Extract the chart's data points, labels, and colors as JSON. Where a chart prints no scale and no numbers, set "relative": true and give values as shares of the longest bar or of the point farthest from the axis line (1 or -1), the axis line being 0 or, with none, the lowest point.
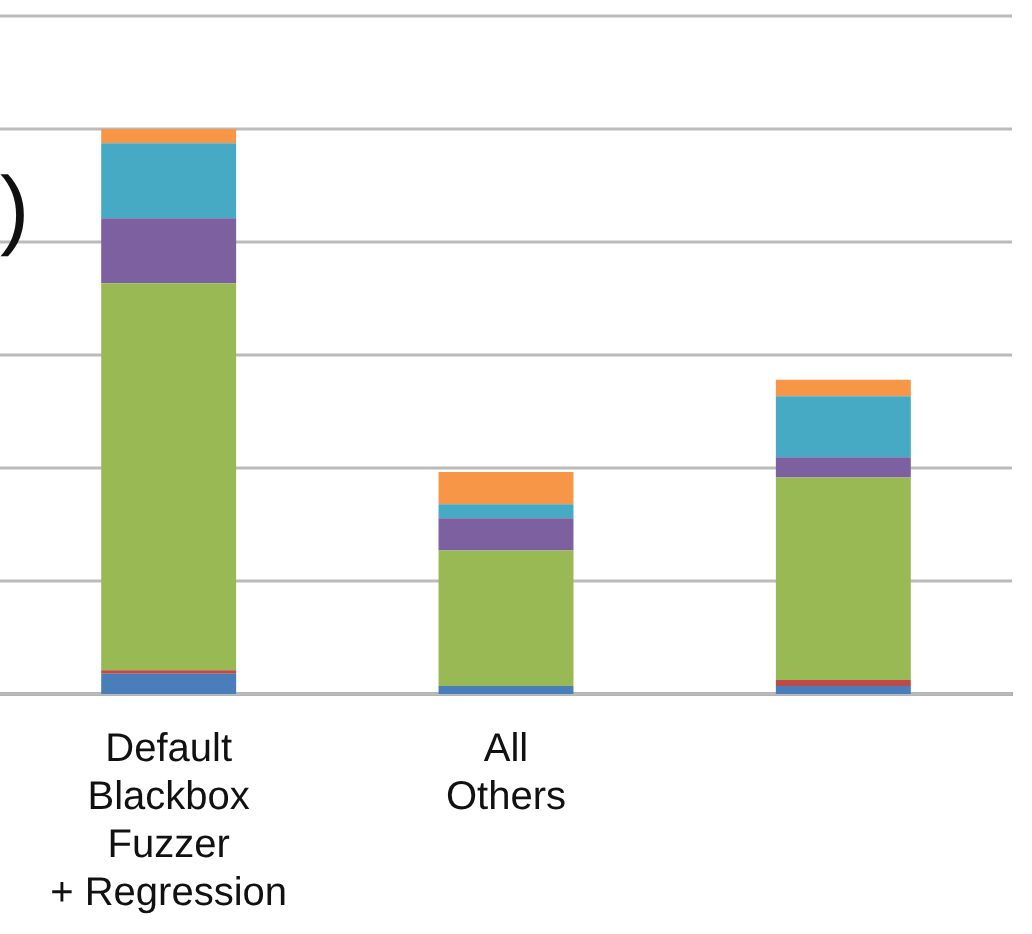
{
  "chart_data": {
    "type": "bar",
    "stacked": true,
    "relative": true,
    "grid": "y",
    "categories": [
      "Default Blackbox Fuzzer + Regression",
      "All Others",
      null
    ],
    "annotations": [
      ")"
    ],
    "series": [
      {
        "color": "#4a7ebb",
        "values": [
          0.036,
          0.014,
          0.014
        ]
      },
      {
        "color": "#be4b48",
        "values": [
          0.006,
          null,
          0.011
        ]
      },
      {
        "color": "#98b954",
        "values": [
          0.685,
          0.24,
          0.358
        ]
      },
      {
        "color": "#7d60a0",
        "values": [
          0.115,
          0.057,
          0.036
        ]
      },
      {
        "color": "#46aac5",
        "values": [
          0.133,
          0.025,
          0.108
        ]
      },
      {
        "color": "#f79646",
        "values": [
          0.025,
          0.057,
          0.029
        ]
      }
    ]
  }
}
